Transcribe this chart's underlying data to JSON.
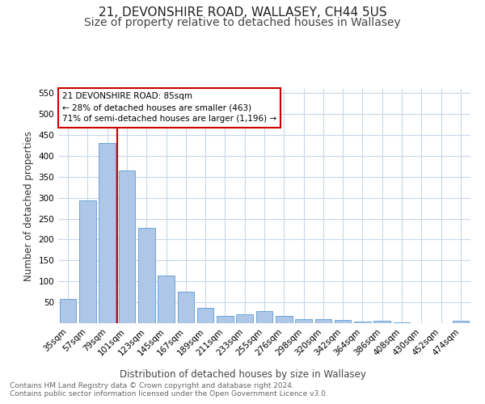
{
  "title1": "21, DEVONSHIRE ROAD, WALLASEY, CH44 5US",
  "title2": "Size of property relative to detached houses in Wallasey",
  "xlabel": "Distribution of detached houses by size in Wallasey",
  "ylabel": "Number of detached properties",
  "categories": [
    "35sqm",
    "57sqm",
    "79sqm",
    "101sqm",
    "123sqm",
    "145sqm",
    "167sqm",
    "189sqm",
    "211sqm",
    "233sqm",
    "255sqm",
    "276sqm",
    "298sqm",
    "320sqm",
    "342sqm",
    "364sqm",
    "386sqm",
    "408sqm",
    "430sqm",
    "452sqm",
    "474sqm"
  ],
  "values": [
    57,
    293,
    430,
    365,
    228,
    113,
    76,
    37,
    18,
    22,
    29,
    17,
    10,
    10,
    8,
    4,
    5,
    1,
    0,
    0,
    5
  ],
  "bar_color": "#aec6e8",
  "bar_edge_color": "#5b9bd5",
  "vline_index": 2.5,
  "vline_color": "#cc0000",
  "annotation_text": "21 DEVONSHIRE ROAD: 85sqm\n← 28% of detached houses are smaller (463)\n71% of semi-detached houses are larger (1,196) →",
  "annotation_box_color": "#ffffff",
  "annotation_box_edge": "#cc0000",
  "ylim": [
    0,
    560
  ],
  "yticks": [
    0,
    50,
    100,
    150,
    200,
    250,
    300,
    350,
    400,
    450,
    500,
    550
  ],
  "footer": "Contains HM Land Registry data © Crown copyright and database right 2024.\nContains public sector information licensed under the Open Government Licence v3.0.",
  "bg_color": "#ffffff",
  "grid_color": "#c8d8e8",
  "title1_fontsize": 11,
  "title2_fontsize": 10,
  "xlabel_fontsize": 8.5,
  "ylabel_fontsize": 8.5,
  "footer_fontsize": 6.5,
  "tick_fontsize": 7.5,
  "annotation_fontsize": 7.5
}
